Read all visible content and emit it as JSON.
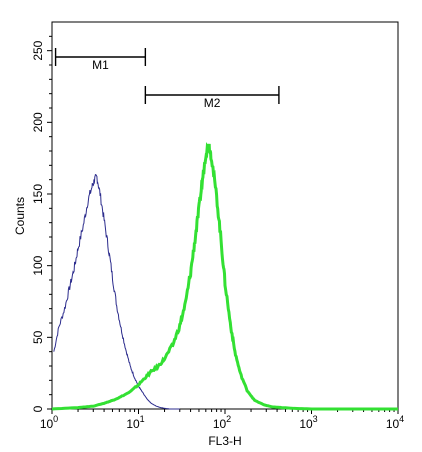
{
  "chart_data": {
    "type": "histogram",
    "xlabel": "FL3-H",
    "ylabel": "Counts",
    "xscale": "log",
    "xlim": [
      1,
      10000
    ],
    "ylim": [
      0,
      270
    ],
    "y_ticks": [
      "0",
      "50",
      "100",
      "150",
      "200",
      "250"
    ],
    "x_ticks": [
      {
        "base": "10",
        "exp": "0"
      },
      {
        "base": "10",
        "exp": "1"
      },
      {
        "base": "10",
        "exp": "2"
      },
      {
        "base": "10",
        "exp": "3"
      },
      {
        "base": "10",
        "exp": "4"
      }
    ],
    "gates": [
      {
        "label": "M1",
        "from": 1.1,
        "to": 12
      },
      {
        "label": "M2",
        "from": 12,
        "to": 420
      }
    ],
    "series": [
      {
        "color": "#2b2b8c",
        "x": [
          1.05,
          1.2,
          1.4,
          1.6,
          1.8,
          2.0,
          2.3,
          2.6,
          2.9,
          3.1,
          3.3,
          3.6,
          4.0,
          4.5,
          5.0,
          5.6,
          6.3,
          7.1,
          8.0,
          9.0,
          10.0,
          11.0,
          12.5,
          14.0,
          16.0,
          18.0,
          20.0,
          23.0,
          30.0
        ],
        "values": [
          40,
          57,
          70,
          85,
          98,
          112,
          128,
          145,
          155,
          160,
          162,
          150,
          132,
          112,
          92,
          72,
          56,
          42,
          30,
          22,
          16,
          12,
          7,
          4,
          2,
          1,
          0.5,
          0,
          0
        ]
      },
      {
        "color": "#33e033",
        "x": [
          1.0,
          2.0,
          3.0,
          4.0,
          5.0,
          6.0,
          8.0,
          10.0,
          12.0,
          14.0,
          17.0,
          20.0,
          25.0,
          30.0,
          35.0,
          40.0,
          45.0,
          50.0,
          55.0,
          60.0,
          65.0,
          70.0,
          80.0,
          90.0,
          100.0,
          115.0,
          130.0,
          150.0,
          180.0,
          220.0,
          280.0,
          350.0,
          450.0,
          600.0,
          1000.0,
          10000.0
        ],
        "values": [
          0,
          1,
          2,
          4,
          6,
          8,
          12,
          17,
          22,
          26,
          30,
          35,
          45,
          58,
          74,
          95,
          118,
          140,
          160,
          178,
          185,
          175,
          148,
          118,
          88,
          60,
          40,
          25,
          13,
          6,
          3,
          1.5,
          1,
          0.5,
          0,
          0
        ]
      }
    ]
  }
}
